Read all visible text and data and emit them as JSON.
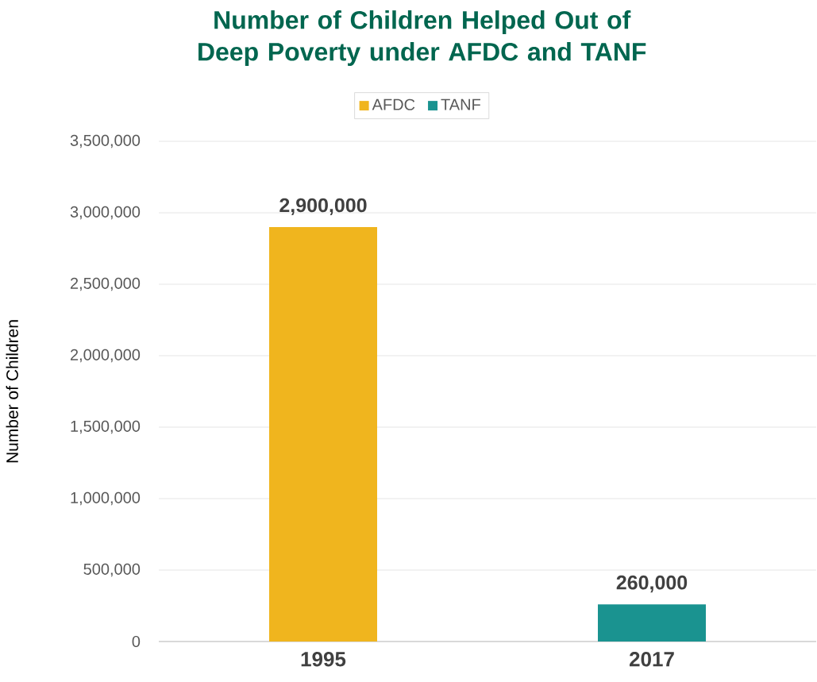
{
  "chart_data": {
    "type": "bar",
    "title": "Number of Children Helped Out of Deep Poverty under AFDC and TANF",
    "ylabel": "Number of Children",
    "categories": [
      "1995",
      "2017"
    ],
    "series": [
      {
        "name": "AFDC",
        "color": "#f0b51e",
        "values": [
          2900000,
          null
        ],
        "value_labels": [
          "2,900,000",
          null
        ]
      },
      {
        "name": "TANF",
        "color": "#1a9390",
        "values": [
          null,
          260000
        ],
        "value_labels": [
          null,
          "260,000"
        ]
      }
    ],
    "ylim": [
      0,
      3500000
    ],
    "yticks": [
      {
        "value": 0,
        "label": "0"
      },
      {
        "value": 500000,
        "label": "500,000"
      },
      {
        "value": 1000000,
        "label": "1,000,000"
      },
      {
        "value": 1500000,
        "label": "1,500,000"
      },
      {
        "value": 2000000,
        "label": "2,000,000"
      },
      {
        "value": 2500000,
        "label": "2,500,000"
      },
      {
        "value": 3000000,
        "label": "3,000,000"
      },
      {
        "value": 3500000,
        "label": "3,500,000"
      }
    ],
    "grid": "y",
    "legend": "top"
  }
}
